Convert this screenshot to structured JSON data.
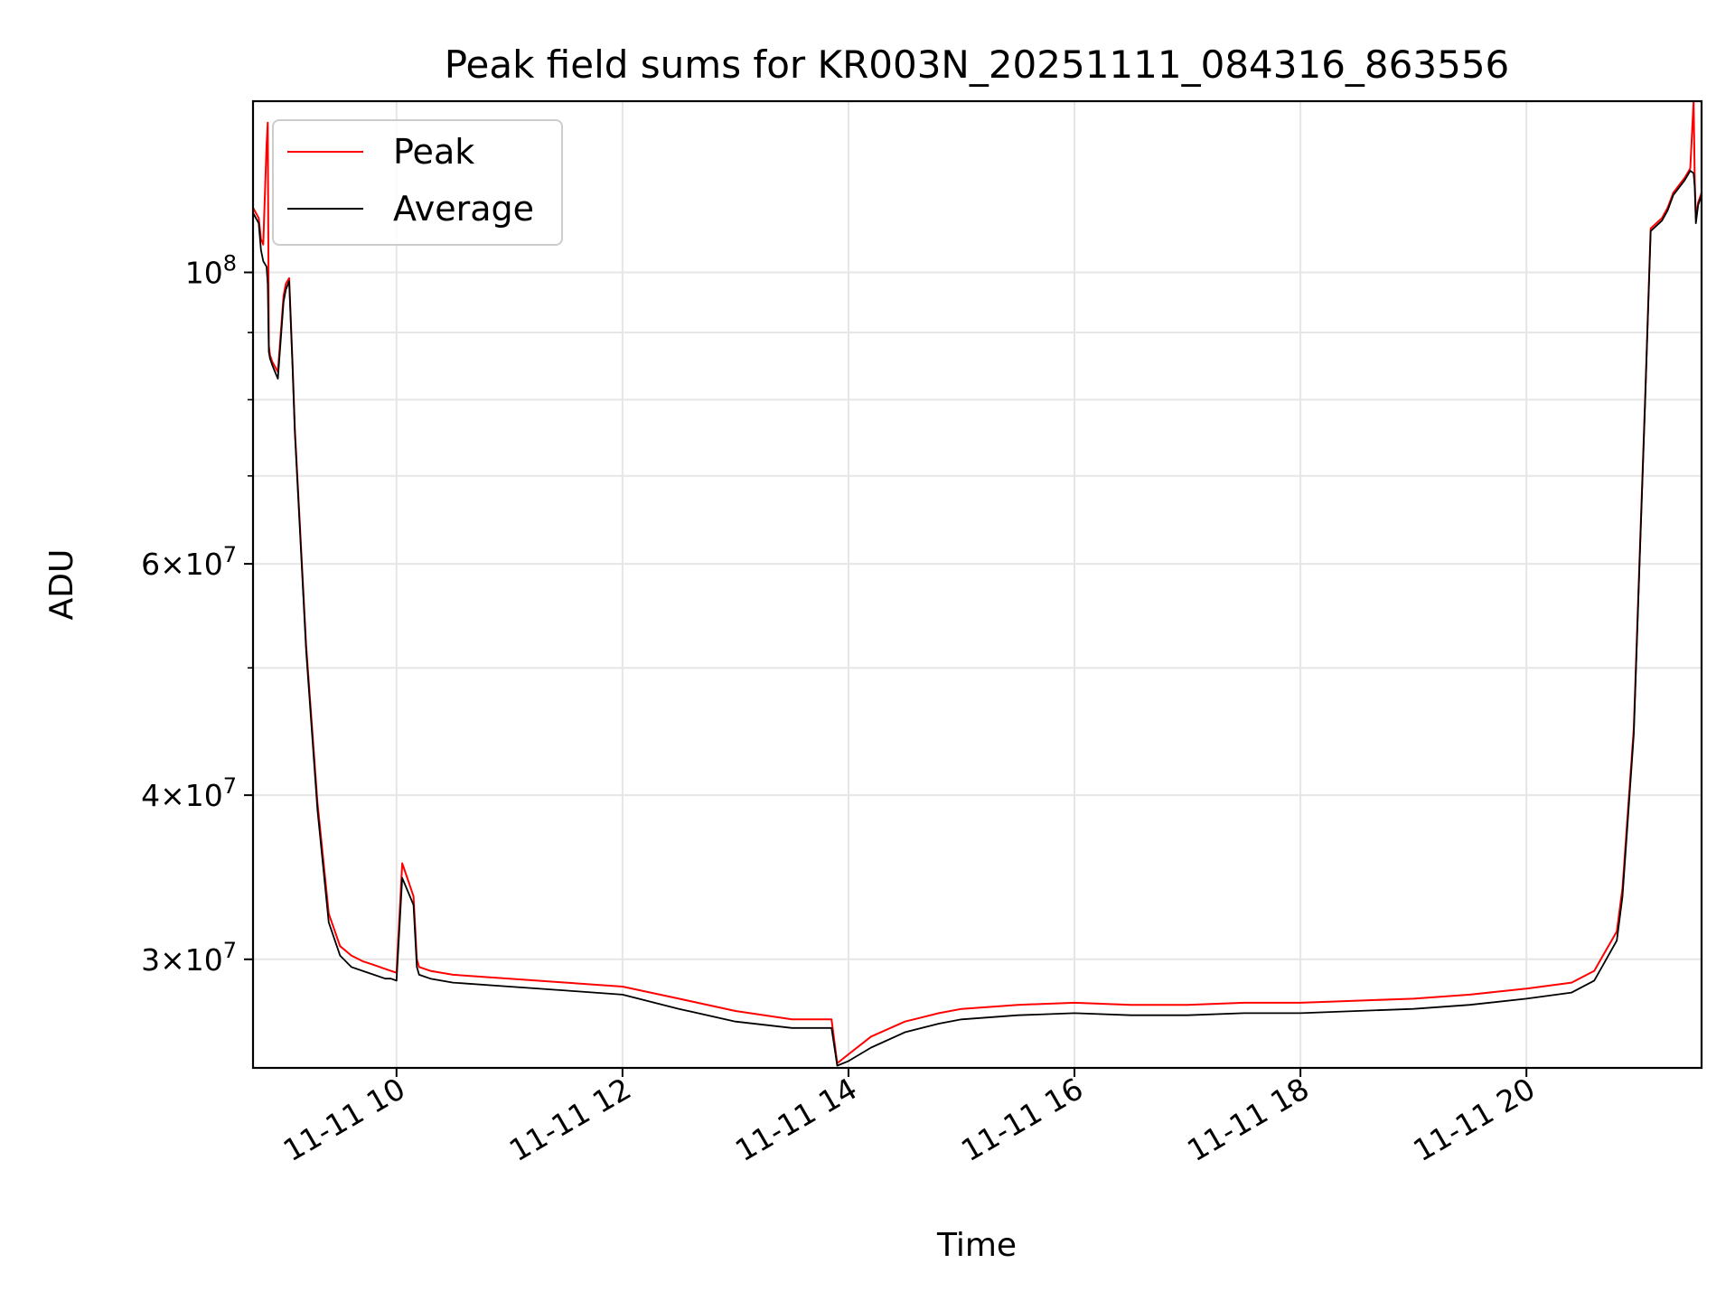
{
  "chart_data": {
    "type": "line",
    "title": "Peak field sums for KR003N_20251111_084316_863556",
    "xlabel": "Time",
    "ylabel": "ADU",
    "yscale": "log",
    "grid": true,
    "legend_placement": "top-left",
    "x_unit": "hours of 2025-11-11 (decimal)",
    "xlim": [
      8.73,
      21.55
    ],
    "ylim": [
      24800000,
      135000000
    ],
    "x_ticks": [
      {
        "value": 10,
        "label": "11-11 10"
      },
      {
        "value": 12,
        "label": "11-11 12"
      },
      {
        "value": 14,
        "label": "11-11 14"
      },
      {
        "value": 16,
        "label": "11-11 16"
      },
      {
        "value": 18,
        "label": "11-11 18"
      },
      {
        "value": 20,
        "label": "11-11 20"
      }
    ],
    "y_ticks": [
      {
        "value": 30000000,
        "base": "3",
        "exp": "7"
      },
      {
        "value": 40000000,
        "base": "4",
        "exp": "7"
      },
      {
        "value": 60000000,
        "base": "6",
        "exp": "7"
      },
      {
        "value": 100000000,
        "base": "",
        "exp": "8"
      }
    ],
    "y_minor_ticks": [
      50000000,
      70000000,
      80000000,
      90000000
    ],
    "series": [
      {
        "name": "Peak",
        "color": "#ff0000",
        "x": [
          8.73,
          8.78,
          8.8,
          8.82,
          8.85,
          8.86,
          8.87,
          8.88,
          8.9,
          8.95,
          9.0,
          9.02,
          9.05,
          9.08,
          9.1,
          9.15,
          9.2,
          9.3,
          9.4,
          9.5,
          9.6,
          9.7,
          9.8,
          9.9,
          9.95,
          10.0,
          10.05,
          10.1,
          10.15,
          10.18,
          10.2,
          10.3,
          10.5,
          11.0,
          11.5,
          12.0,
          12.5,
          13.0,
          13.5,
          13.85,
          13.9,
          14.0,
          14.2,
          14.5,
          14.8,
          15.0,
          15.5,
          16.0,
          16.5,
          17.0,
          17.5,
          18.0,
          18.5,
          19.0,
          19.5,
          20.0,
          20.4,
          20.6,
          20.8,
          20.85,
          20.95,
          21.0,
          21.05,
          21.1,
          21.2,
          21.25,
          21.3,
          21.4,
          21.45,
          21.48,
          21.49,
          21.5,
          21.52,
          21.55
        ],
        "y": [
          112000000,
          110000000,
          106000000,
          105000000,
          125000000,
          130000000,
          88000000,
          86500000,
          85500000,
          84000000,
          96000000,
          98000000,
          99000000,
          85000000,
          76000000,
          63000000,
          52000000,
          39500000,
          32500000,
          30700000,
          30200000,
          29900000,
          29700000,
          29500000,
          29400000,
          29300000,
          35500000,
          34500000,
          33500000,
          30000000,
          29600000,
          29400000,
          29200000,
          29000000,
          28800000,
          28600000,
          28000000,
          27400000,
          27000000,
          27000000,
          25000000,
          25400000,
          26200000,
          26900000,
          27300000,
          27500000,
          27700000,
          27800000,
          27700000,
          27700000,
          27800000,
          27800000,
          27900000,
          28000000,
          28200000,
          28500000,
          28800000,
          29400000,
          31500000,
          34000000,
          45000000,
          60000000,
          80000000,
          108000000,
          110000000,
          112000000,
          115000000,
          118000000,
          120000000,
          135000000,
          117000000,
          110000000,
          113000000,
          115000000
        ]
      },
      {
        "name": "Average",
        "color": "#000000",
        "x": [
          8.73,
          8.78,
          8.8,
          8.82,
          8.85,
          8.86,
          8.87,
          8.88,
          8.9,
          8.95,
          9.0,
          9.02,
          9.05,
          9.08,
          9.1,
          9.15,
          9.2,
          9.3,
          9.4,
          9.5,
          9.6,
          9.7,
          9.8,
          9.9,
          9.95,
          10.0,
          10.05,
          10.1,
          10.15,
          10.18,
          10.2,
          10.3,
          10.5,
          11.0,
          11.5,
          12.0,
          12.5,
          13.0,
          13.5,
          13.85,
          13.9,
          14.0,
          14.2,
          14.5,
          14.8,
          15.0,
          15.5,
          16.0,
          16.5,
          17.0,
          17.5,
          18.0,
          18.5,
          19.0,
          19.5,
          20.0,
          20.4,
          20.6,
          20.8,
          20.85,
          20.95,
          21.0,
          21.05,
          21.1,
          21.2,
          21.25,
          21.3,
          21.4,
          21.45,
          21.48,
          21.49,
          21.5,
          21.52,
          21.55
        ],
        "y": [
          111000000,
          109000000,
          104000000,
          102000000,
          101000000,
          98000000,
          87000000,
          86000000,
          85000000,
          83000000,
          95000000,
          97000000,
          98500000,
          84500000,
          75500000,
          62500000,
          51500000,
          39000000,
          32000000,
          30200000,
          29600000,
          29400000,
          29200000,
          29000000,
          29000000,
          28900000,
          34600000,
          33800000,
          33000000,
          29600000,
          29200000,
          29000000,
          28800000,
          28600000,
          28400000,
          28200000,
          27500000,
          26900000,
          26600000,
          26600000,
          24900000,
          25100000,
          25700000,
          26400000,
          26800000,
          27000000,
          27200000,
          27300000,
          27200000,
          27200000,
          27300000,
          27300000,
          27400000,
          27500000,
          27700000,
          28000000,
          28300000,
          28900000,
          31000000,
          33500000,
          44500000,
          59500000,
          79500000,
          107500000,
          109500000,
          111500000,
          114500000,
          117500000,
          119500000,
          119000000,
          116000000,
          109000000,
          112500000,
          114500000
        ]
      }
    ]
  }
}
